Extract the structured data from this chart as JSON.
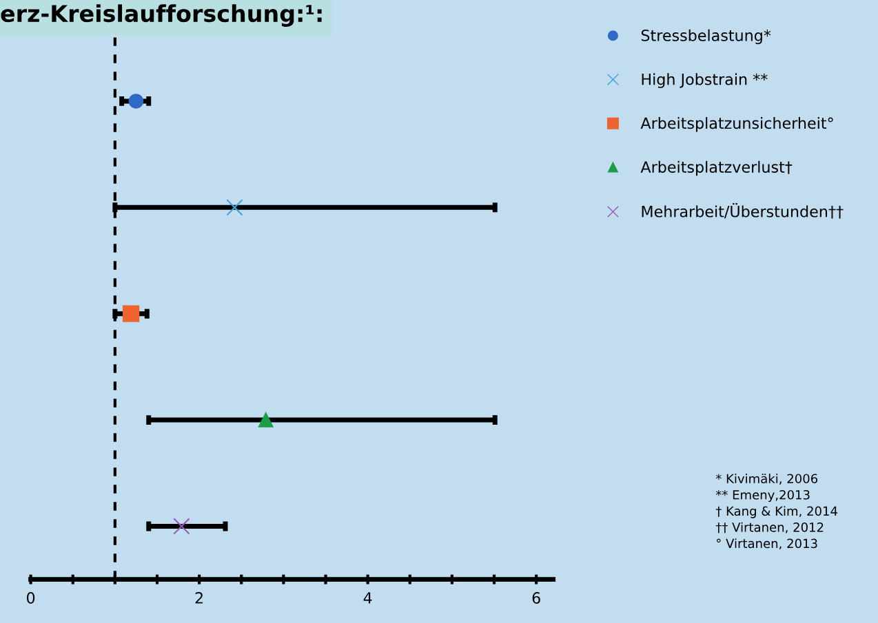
{
  "chart_data": {
    "type": "scatter",
    "orientation": "horizontal",
    "title": "erz-Kreislaufforschung:¹:",
    "categories": [
      null,
      null,
      null,
      null,
      null
    ],
    "series": [
      {
        "name": "Stressbelastung*",
        "color": "#2e6ac4",
        "marker": "circle",
        "values": [
          1.25,
          null,
          null,
          null,
          null
        ],
        "errors": [
          [
            1.08,
            1.4
          ],
          null,
          null,
          null,
          null
        ]
      },
      {
        "name": "High Jobstrain **",
        "color": "#3fa3e0",
        "marker": "cross",
        "values": [
          null,
          2.42,
          null,
          null,
          null
        ],
        "errors": [
          null,
          [
            1.0,
            5.51
          ],
          null,
          null,
          null
        ]
      },
      {
        "name": "Arbeitsplatzunsicherheit°",
        "color": "#ee6430",
        "marker": "square",
        "values": [
          null,
          null,
          1.19,
          null,
          null
        ],
        "errors": [
          null,
          null,
          [
            1.0,
            1.38
          ],
          null,
          null
        ]
      },
      {
        "name": "Arbeitsplatzverlust†",
        "color": "#1a9e48",
        "marker": "triangle",
        "values": [
          null,
          null,
          null,
          2.79,
          null
        ],
        "errors": [
          null,
          null,
          null,
          [
            1.4,
            5.51
          ],
          null
        ]
      },
      {
        "name": "Mehrarbeit/Überstunden††",
        "color": "#9a58b8",
        "marker": "cross",
        "values": [
          null,
          null,
          null,
          null,
          1.79
        ],
        "errors": [
          null,
          null,
          null,
          null,
          [
            1.4,
            2.31
          ]
        ]
      }
    ],
    "xlim": [
      0,
      6.2
    ],
    "xticks": [
      0,
      {
        "value": 0.5,
        "label": null
      },
      {
        "value": 1,
        "label": null
      },
      {
        "value": 1.5,
        "label": null
      },
      2,
      {
        "value": 2.5,
        "label": null
      },
      {
        "value": 3,
        "label": null
      },
      {
        "value": 3.5,
        "label": null
      },
      4,
      {
        "value": 4.5,
        "label": null
      },
      {
        "value": 5,
        "label": null
      },
      {
        "value": 5.5,
        "label": null
      },
      6
    ],
    "tick_labels": "x",
    "ref_lines": [
      {
        "axis": "x",
        "value": 1,
        "line_style": "dashed",
        "color": "#000000"
      }
    ],
    "legend": "right",
    "grid": false,
    "annotations": [
      "* Kivimäki, 2006",
      "** Emeny,2013",
      "† Kang & Kim, 2014",
      "†† Virtanen, 2012",
      "° Virtanen, 2013"
    ]
  }
}
